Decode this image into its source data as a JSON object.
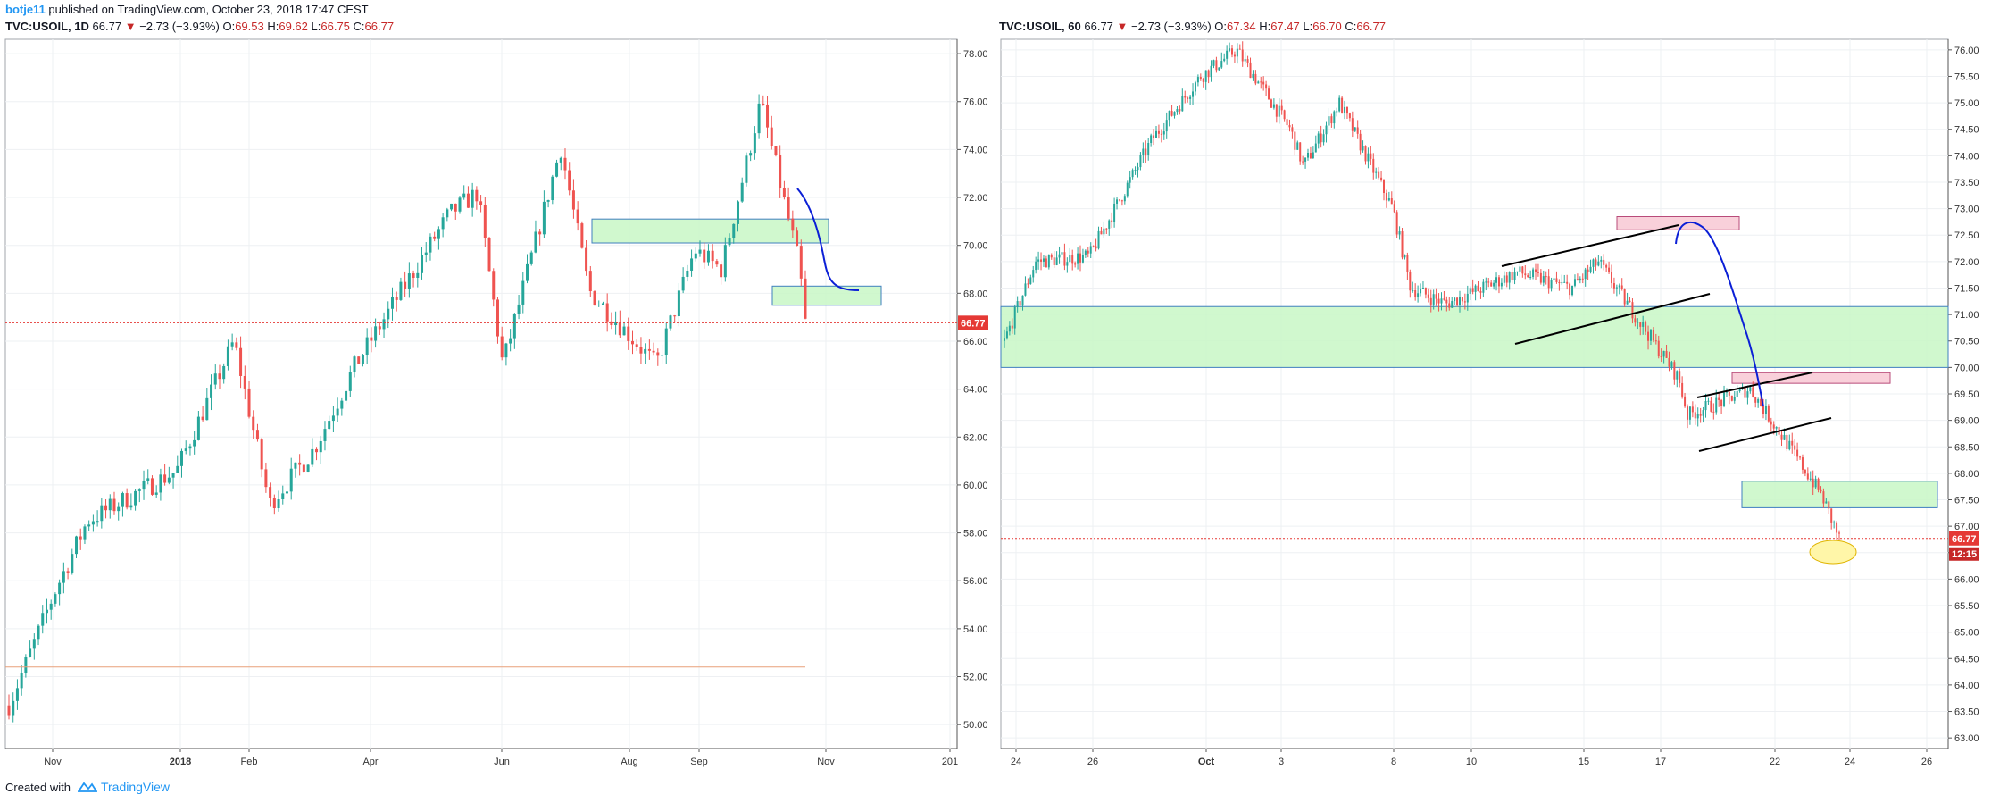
{
  "header": {
    "author": "botje11",
    "publish_text": " published on TradingView.com, October 23, 2018 17:47 CEST"
  },
  "footer": {
    "created_with": "Created with",
    "brand": "TradingView"
  },
  "colors": {
    "up": "#26a69a",
    "down": "#ef5350",
    "box_green": "#c8f7c5",
    "box_pink": "#f8c8d4",
    "curve": "#0b1fd6",
    "price_line": "#e53935",
    "support_line": "#e8a07a"
  },
  "chart_data": [
    {
      "type": "candlestick",
      "symbol": "TVC:USOIL, 1D",
      "last": "66.77",
      "change": "−2.73 (−3.93%)",
      "open": "69.53",
      "high": "69.62",
      "low": "66.75",
      "close": "66.77",
      "ylim": [
        49,
        78.6
      ],
      "y_ticks": [
        "78.00",
        "76.00",
        "74.00",
        "72.00",
        "70.00",
        "68.00",
        "66.00",
        "64.00",
        "62.00",
        "60.00",
        "58.00",
        "56.00",
        "54.00",
        "52.00",
        "50.00"
      ],
      "x_ticks": [
        "Nov",
        "2018",
        "Feb",
        "Apr",
        "Jun",
        "Aug",
        "Sep",
        "Nov",
        "201"
      ],
      "price_label": "66.77",
      "support_level": 52.4,
      "zones": [
        {
          "from": "Jul 10",
          "to": "Oct 31",
          "low": 70.1,
          "high": 71.1
        },
        {
          "from": "Oct 10",
          "to": "Dec 5",
          "low": 67.5,
          "high": 68.3
        }
      ],
      "projection_curve": [
        [
          72.2,
          "Oct 3"
        ],
        [
          67.8,
          "Nov 25"
        ]
      ],
      "closes": [
        [
          "2017-10-23",
          50.8
        ],
        [
          "2017-11-15",
          55.6
        ],
        [
          "2017-12-01",
          58.5
        ],
        [
          "2018-01-02",
          60.6
        ],
        [
          "2018-01-25",
          66.0
        ],
        [
          "2018-02-13",
          59.2
        ],
        [
          "2018-03-05",
          61.5
        ],
        [
          "2018-03-28",
          65.0
        ],
        [
          "2018-04-20",
          68.0
        ],
        [
          "2018-05-10",
          71.3
        ],
        [
          "2018-05-22",
          72.2
        ],
        [
          "2018-06-18",
          65.0
        ],
        [
          "2018-07-03",
          74.1
        ],
        [
          "2018-07-17",
          68.1
        ],
        [
          "2018-08-15",
          65.0
        ],
        [
          "2018-08-30",
          69.8
        ],
        [
          "2018-09-14",
          69.0
        ],
        [
          "2018-10-03",
          76.0
        ],
        [
          "2018-10-16",
          71.9
        ],
        [
          "2018-10-22",
          69.2
        ],
        [
          "2018-10-23",
          66.77
        ]
      ]
    },
    {
      "type": "candlestick",
      "symbol": "TVC:USOIL, 60",
      "last": "66.77",
      "change": "−2.73 (−3.93%)",
      "open": "67.34",
      "high": "67.47",
      "low": "66.70",
      "close": "66.77",
      "ylim": [
        62.8,
        76.2
      ],
      "y_ticks": [
        "76.00",
        "75.50",
        "75.00",
        "74.50",
        "74.00",
        "73.50",
        "73.00",
        "72.50",
        "72.00",
        "71.50",
        "71.00",
        "70.50",
        "70.00",
        "69.50",
        "69.00",
        "68.50",
        "68.00",
        "67.50",
        "67.00",
        "66.50",
        "66.00",
        "65.50",
        "65.00",
        "64.50",
        "64.00",
        "63.50",
        "63.00"
      ],
      "x_ticks": [
        "24",
        "26",
        "Oct",
        "3",
        "8",
        "10",
        "15",
        "17",
        "22",
        "24",
        "26"
      ],
      "price_label": "66.77",
      "time_label": "12:15",
      "zones": [
        {
          "from": "Sep 23",
          "to": "Oct 27",
          "low": 70.0,
          "high": 71.15,
          "color": "green"
        },
        {
          "from": "Oct 20",
          "to": "Oct 24",
          "low": 67.35,
          "high": 67.85,
          "color": "green"
        },
        {
          "from": "Oct 16",
          "to": "Oct 18",
          "low": 72.6,
          "high": 72.85,
          "color": "pink"
        },
        {
          "from": "Oct 20",
          "to": "Oct 23",
          "low": 69.7,
          "high": 69.9,
          "color": "pink"
        }
      ],
      "closes": [
        [
          "2018-09-21",
          70.5
        ],
        [
          "2018-09-25",
          72.0
        ],
        [
          "2018-09-28",
          72.1
        ],
        [
          "2018-10-01",
          74.3
        ],
        [
          "2018-10-03",
          75.5
        ],
        [
          "2018-10-04",
          76.0
        ],
        [
          "2018-10-05",
          74.5
        ],
        [
          "2018-10-08",
          73.8
        ],
        [
          "2018-10-09",
          75.0
        ],
        [
          "2018-10-10",
          73.0
        ],
        [
          "2018-10-11",
          71.5
        ],
        [
          "2018-10-12",
          71.2
        ],
        [
          "2018-10-15",
          71.8
        ],
        [
          "2018-10-16",
          71.5
        ],
        [
          "2018-10-17",
          72.0
        ],
        [
          "2018-10-18",
          69.8
        ],
        [
          "2018-10-19",
          69.1
        ],
        [
          "2018-10-22",
          69.3
        ],
        [
          "2018-10-22T20",
          69.6
        ],
        [
          "2018-10-23T08",
          67.6
        ],
        [
          "2018-10-23T12",
          66.77
        ]
      ]
    }
  ]
}
